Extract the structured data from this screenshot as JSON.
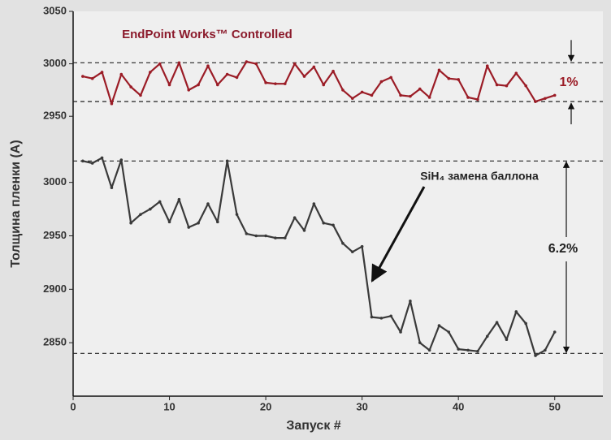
{
  "chart_data": [
    {
      "type": "line",
      "title": "EndPoint Works™ Controlled",
      "annotations": [
        "1%"
      ],
      "color": "#9b1c26",
      "x": [
        1,
        2,
        3,
        4,
        5,
        6,
        7,
        8,
        9,
        10,
        11,
        12,
        13,
        14,
        15,
        16,
        17,
        18,
        19,
        20,
        21,
        22,
        23,
        24,
        25,
        26,
        27,
        28,
        29,
        30,
        31,
        32,
        33,
        34,
        35,
        36,
        37,
        38,
        39,
        40,
        41,
        42,
        43,
        44,
        45,
        46,
        47,
        48,
        49,
        50
      ],
      "values": [
        2988,
        2986,
        2992,
        2962,
        2990,
        2978,
        2970,
        2992,
        3000,
        2980,
        3001,
        2975,
        2980,
        2998,
        2980,
        2990,
        2987,
        3002,
        3000,
        2982,
        2981,
        2981,
        3000,
        2988,
        2997,
        2980,
        2993,
        2975,
        2967,
        2973,
        2970,
        2983,
        2987,
        2970,
        2969,
        2976,
        2968,
        2994,
        2986,
        2985,
        2968,
        2966,
        2998,
        2980,
        2979,
        2991,
        2979,
        2964,
        2967,
        2970
      ],
      "hlines": [
        3001,
        2964
      ],
      "ylim": [
        2937,
        3050
      ],
      "yticks": [
        2950,
        3000,
        3050
      ],
      "xlim": [
        0,
        55
      ]
    },
    {
      "type": "line",
      "annotations": [
        "SiH₄ замена баллона",
        "6.2%"
      ],
      "xlabel": "Запуск #",
      "ylabel": "Толщина пленки (A)",
      "color": "#3a3a3a",
      "x": [
        1,
        2,
        3,
        4,
        5,
        6,
        7,
        8,
        9,
        10,
        11,
        12,
        13,
        14,
        15,
        16,
        17,
        18,
        19,
        20,
        21,
        22,
        23,
        24,
        25,
        26,
        27,
        28,
        29,
        30,
        31,
        32,
        33,
        34,
        35,
        36,
        37,
        38,
        39,
        40,
        41,
        42,
        43,
        44,
        45,
        46,
        47,
        48,
        49,
        50
      ],
      "values": [
        3020,
        3018,
        3023,
        2995,
        3021,
        2962,
        2970,
        2975,
        2982,
        2963,
        2984,
        2958,
        2962,
        2980,
        2963,
        3020,
        2970,
        2952,
        2950,
        2950,
        2948,
        2948,
        2967,
        2955,
        2980,
        2962,
        2960,
        2943,
        2935,
        2940,
        2874,
        2873,
        2875,
        2860,
        2889,
        2850,
        2843,
        2866,
        2860,
        2844,
        2843,
        2842,
        2856,
        2869,
        2853,
        2879,
        2868,
        2838,
        2843,
        2860
      ],
      "hlines": [
        3020,
        2840
      ],
      "ylim": [
        2800,
        3040
      ],
      "yticks": [
        2850,
        2900,
        2950,
        3000
      ],
      "xlim": [
        0,
        55
      ],
      "xticks": [
        0,
        10,
        20,
        30,
        40,
        50
      ]
    }
  ]
}
